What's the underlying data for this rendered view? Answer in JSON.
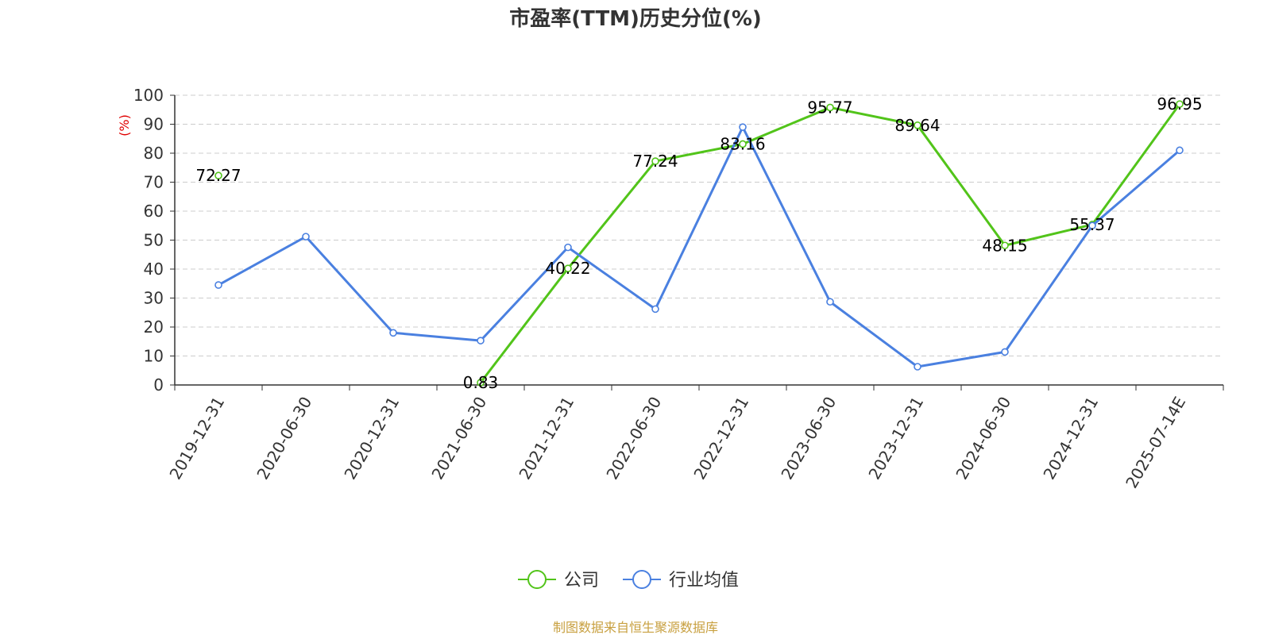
{
  "chart_data": {
    "type": "line",
    "title": "市盈率(TTM)历史分位(%)",
    "ylabel": "(%)",
    "ylim": [
      0,
      100
    ],
    "yticks": [
      0,
      10,
      20,
      30,
      40,
      50,
      60,
      70,
      80,
      90,
      100
    ],
    "grid": true,
    "legend_position": "bottom-center",
    "categories": [
      "2019-12-31",
      "2020-06-30",
      "2020-12-31",
      "2021-06-30",
      "2021-12-31",
      "2022-06-30",
      "2022-12-31",
      "2023-06-30",
      "2023-12-31",
      "2024-06-30",
      "2024-12-31",
      "2025-07-14E"
    ],
    "series": [
      {
        "name": "公司",
        "color": "#52c41a",
        "values": [
          72.27,
          null,
          null,
          0.83,
          40.22,
          77.24,
          83.16,
          95.77,
          89.64,
          48.15,
          55.37,
          96.95
        ],
        "labels": [
          "72.27",
          "",
          "",
          "0.83",
          "40.22",
          "77.24",
          "83.16",
          "95.77",
          "89.64",
          "48.15",
          "55.37",
          "96.95"
        ]
      },
      {
        "name": "行业均值",
        "color": "#4a80e0",
        "values": [
          34.5,
          51.2,
          18.0,
          15.3,
          47.5,
          26.2,
          89.0,
          28.7,
          6.3,
          11.4,
          55.0,
          81.0
        ]
      }
    ]
  },
  "source": "制图数据来自恒生聚源数据库"
}
